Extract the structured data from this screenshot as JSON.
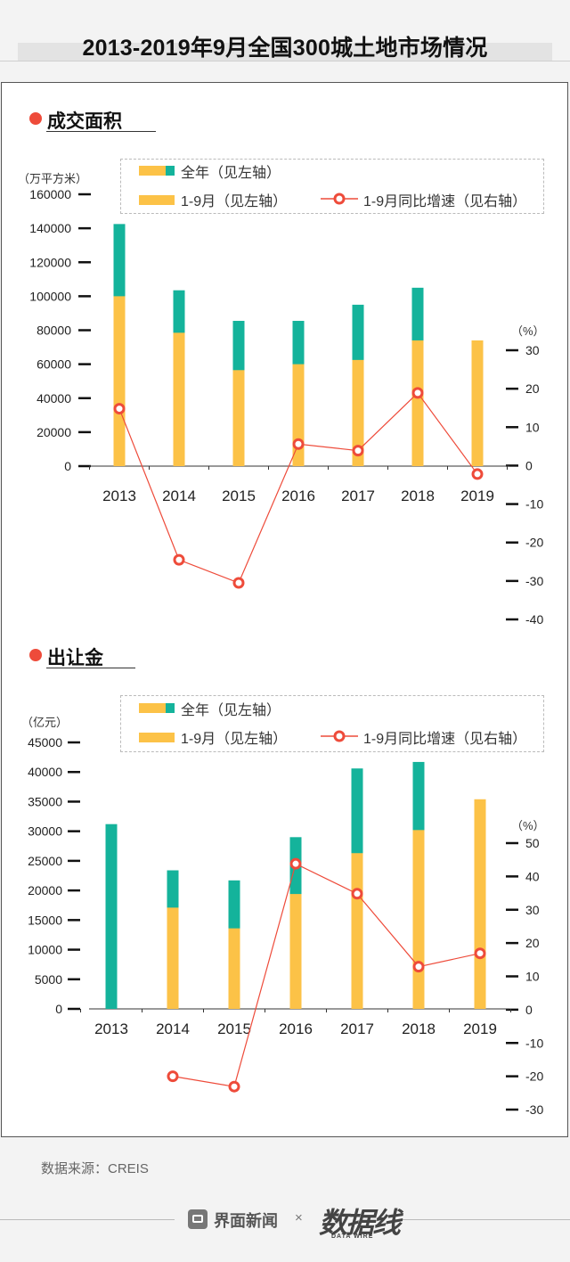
{
  "title": "2013-2019年9月全国300城土地市场情况",
  "colors": {
    "full_year": "#14b39b",
    "jan_sep": "#fcc247",
    "growth": "#ee4b3a"
  },
  "source": "数据来源：CREIS",
  "footer": {
    "brand": "界面新闻",
    "x": "×",
    "data_brand": "数据线",
    "data_brand_sub": "DATA WIRE"
  },
  "legend_labels": {
    "full_year": "全年（见左轴）",
    "jan_sep": "1-9月（见左轴）",
    "growth": "1-9月同比增速（见右轴）"
  },
  "chart_data": [
    {
      "type": "bar",
      "title": "成交面积",
      "ylabel": "（万平方米）",
      "y2label": "（%）",
      "ylim": [
        0,
        160000
      ],
      "y2lim": [
        -40,
        30
      ],
      "yticks": [
        0,
        20000,
        40000,
        60000,
        80000,
        100000,
        120000,
        140000,
        160000
      ],
      "y2ticks": [
        -40,
        -30,
        -20,
        -10,
        0,
        10,
        20,
        30
      ],
      "categories": [
        "2013",
        "2014",
        "2015",
        "2016",
        "2017",
        "2018",
        "2019"
      ],
      "series": [
        {
          "name": "全年（见左轴）",
          "kind": "bar",
          "values": [
            142500,
            103500,
            85500,
            85500,
            95000,
            105000,
            null
          ]
        },
        {
          "name": "1-9月（见左轴）",
          "kind": "bar",
          "values": [
            100000,
            78500,
            56500,
            60000,
            62500,
            74000,
            74000
          ]
        },
        {
          "name": "1-9月同比增速（见右轴）",
          "kind": "line",
          "values": [
            14.8,
            -24.5,
            -30.5,
            5.6,
            3.9,
            18.9,
            -2.2
          ]
        }
      ]
    },
    {
      "type": "bar",
      "title": "出让金",
      "ylabel": "（亿元）",
      "y2label": "（%）",
      "ylim": [
        0,
        45000
      ],
      "y2lim": [
        -30,
        50
      ],
      "yticks": [
        0,
        5000,
        10000,
        15000,
        20000,
        25000,
        30000,
        35000,
        40000,
        45000
      ],
      "y2ticks": [
        -30,
        -20,
        -10,
        0,
        10,
        20,
        30,
        40,
        50
      ],
      "categories": [
        "2013",
        "2014",
        "2015",
        "2016",
        "2017",
        "2018",
        "2019"
      ],
      "series": [
        {
          "name": "全年（见左轴）",
          "kind": "bar",
          "values": [
            31200,
            23400,
            21700,
            29000,
            40600,
            41700,
            null
          ]
        },
        {
          "name": "1-9月（见左轴）",
          "kind": "bar",
          "values": [
            null,
            17100,
            13600,
            19400,
            26300,
            30200,
            35400
          ]
        },
        {
          "name": "1-9月同比增速（见右轴）",
          "kind": "line",
          "values": [
            null,
            -20.0,
            -23.1,
            43.8,
            34.8,
            12.9,
            16.9
          ]
        }
      ]
    }
  ]
}
